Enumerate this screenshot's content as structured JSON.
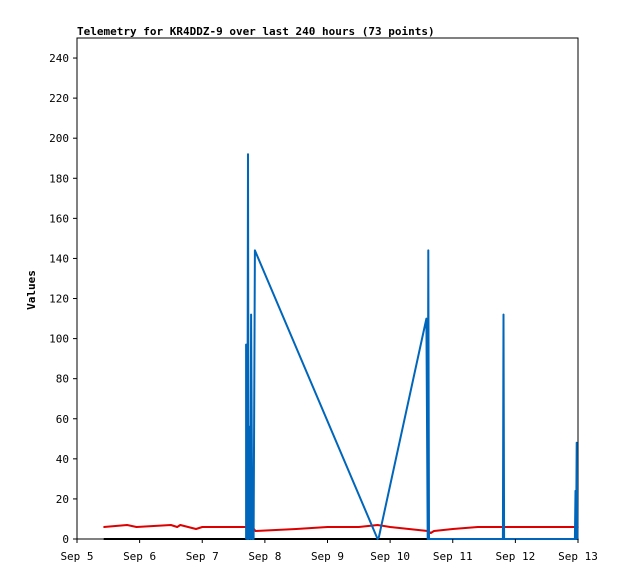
{
  "chart_data": {
    "type": "line",
    "title": "Telemetry for KR4DDZ-9 over last 240 hours (73 points)",
    "xlabel": "",
    "ylabel": "Values",
    "x_ticks": [
      "Sep 5",
      "Sep 6",
      "Sep 7",
      "Sep 8",
      "Sep 9",
      "Sep 10",
      "Sep 11",
      "Sep 12",
      "Sep 13"
    ],
    "x_range_days": [
      5,
      13
    ],
    "ylim": [
      0,
      250
    ],
    "y_ticks": [
      0,
      20,
      40,
      60,
      80,
      100,
      120,
      140,
      160,
      180,
      200,
      220,
      240
    ],
    "grid": false,
    "series": [
      {
        "color": "#000000",
        "points": [
          [
            5.43,
            0
          ],
          [
            13.0,
            0
          ]
        ]
      },
      {
        "color": "#dd0000",
        "points": [
          [
            5.43,
            6
          ],
          [
            5.8,
            7
          ],
          [
            5.95,
            6
          ],
          [
            6.5,
            7
          ],
          [
            6.6,
            6
          ],
          [
            6.65,
            7
          ],
          [
            6.9,
            5
          ],
          [
            7.0,
            6
          ],
          [
            7.8,
            6
          ],
          [
            7.85,
            4
          ],
          [
            8.5,
            5
          ],
          [
            9.0,
            6
          ],
          [
            9.5,
            6
          ],
          [
            9.8,
            7
          ],
          [
            10.0,
            6
          ],
          [
            10.3,
            5
          ],
          [
            10.6,
            4
          ],
          [
            10.65,
            3
          ],
          [
            10.7,
            4
          ],
          [
            11.0,
            5
          ],
          [
            11.4,
            6
          ],
          [
            11.8,
            6
          ],
          [
            12.0,
            6
          ],
          [
            12.9,
            6
          ],
          [
            13.0,
            6
          ]
        ]
      },
      {
        "color": "#0066bb",
        "points": [
          [
            7.7,
            0
          ],
          [
            7.7,
            97
          ],
          [
            7.72,
            0
          ],
          [
            7.73,
            192
          ],
          [
            7.74,
            0
          ],
          [
            7.76,
            56
          ],
          [
            7.77,
            0
          ],
          [
            7.78,
            112
          ],
          [
            7.8,
            0
          ],
          [
            7.82,
            0
          ],
          [
            7.84,
            144
          ],
          [
            9.8,
            0
          ],
          [
            9.82,
            1
          ],
          [
            10.58,
            110
          ],
          [
            10.6,
            0
          ],
          [
            10.61,
            144
          ],
          [
            10.62,
            0
          ],
          [
            11.8,
            0
          ],
          [
            11.81,
            112
          ],
          [
            11.82,
            0
          ],
          [
            12.95,
            0
          ],
          [
            12.96,
            24
          ],
          [
            12.97,
            0
          ],
          [
            12.98,
            48
          ],
          [
            12.99,
            0
          ]
        ]
      }
    ]
  }
}
